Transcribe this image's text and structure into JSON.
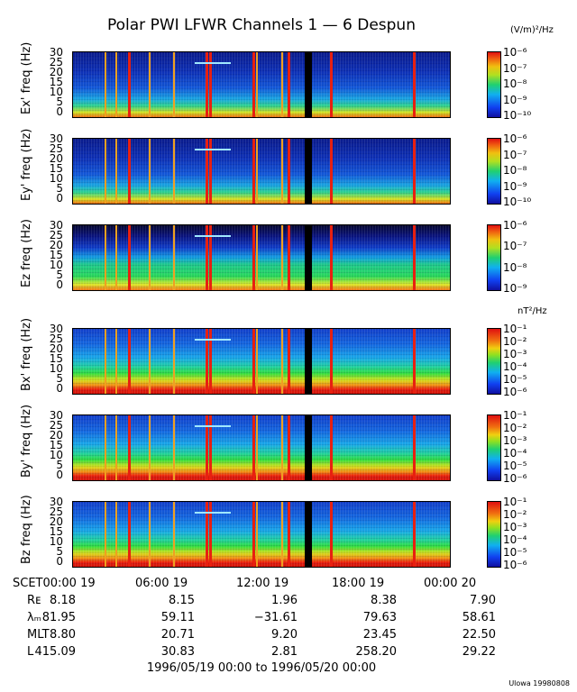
{
  "title": "Polar PWI LFWR Channels 1 — 6 Despun",
  "units": {
    "electric": "(V/m)²/Hz",
    "magnetic": "nT²/Hz"
  },
  "panels": [
    {
      "ylabel": "Ex' freq (Hz)",
      "yticks": [
        "30",
        "25",
        "20",
        "15",
        "10",
        "5",
        "0"
      ],
      "cbar": [
        "10⁻⁶",
        "10⁻⁷",
        "10⁻⁸",
        "10⁻⁹",
        "10⁻¹⁰"
      ]
    },
    {
      "ylabel": "Ey' freq (Hz)",
      "yticks": [
        "30",
        "25",
        "20",
        "15",
        "10",
        "5",
        "0"
      ],
      "cbar": [
        "10⁻⁶",
        "10⁻⁷",
        "10⁻⁸",
        "10⁻⁹",
        "10⁻¹⁰"
      ]
    },
    {
      "ylabel": "Ez freq (Hz)",
      "yticks": [
        "30",
        "25",
        "20",
        "15",
        "10",
        "5",
        "0"
      ],
      "cbar": [
        "10⁻⁶",
        "10⁻⁷",
        "10⁻⁸",
        "10⁻⁹"
      ]
    },
    {
      "ylabel": "Bx' freq (Hz)",
      "yticks": [
        "30",
        "25",
        "20",
        "15",
        "10",
        "5",
        "0"
      ],
      "cbar": [
        "10⁻¹",
        "10⁻²",
        "10⁻³",
        "10⁻⁴",
        "10⁻⁵",
        "10⁻⁶"
      ]
    },
    {
      "ylabel": "By' freq (Hz)",
      "yticks": [
        "30",
        "25",
        "20",
        "15",
        "10",
        "5",
        "0"
      ],
      "cbar": [
        "10⁻¹",
        "10⁻²",
        "10⁻³",
        "10⁻⁴",
        "10⁻⁵",
        "10⁻⁶"
      ]
    },
    {
      "ylabel": "Bz freq (Hz)",
      "yticks": [
        "30",
        "25",
        "20",
        "15",
        "10",
        "5",
        "0"
      ],
      "cbar": [
        "10⁻¹",
        "10⁻²",
        "10⁻³",
        "10⁻⁴",
        "10⁻⁵",
        "10⁻⁶"
      ]
    }
  ],
  "xaxis": {
    "ticks": [
      "SCET00:00 19",
      "06:00 19",
      "12:00 19",
      "18:00 19",
      "00:00 20"
    ]
  },
  "ephemeris": {
    "labels": [
      "Rᴇ",
      "λₘ",
      "MLT",
      "L"
    ],
    "rows": [
      [
        "8.18",
        "8.15",
        "1.96",
        "8.38",
        "7.90"
      ],
      [
        "81.95",
        "59.11",
        "−31.61",
        "79.63",
        "58.61"
      ],
      [
        "8.80",
        "20.71",
        "9.20",
        "23.45",
        "22.50"
      ],
      [
        "415.09",
        "30.83",
        "2.81",
        "258.20",
        "29.22"
      ]
    ]
  },
  "range": "1996/05/19 00:00 to 1996/05/20 00:00",
  "stamp": "Ulowa 19980808",
  "chart_data": {
    "type": "heatmap",
    "title": "Polar PWI LFWR Channels 1 — 6 Despun",
    "xlabel": "",
    "x_range": [
      "1996/05/19 00:00",
      "1996/05/20 00:00"
    ],
    "ylim": [
      0,
      30
    ],
    "series": [
      {
        "name": "Ex'",
        "units": "(V/m)²/Hz",
        "clim": [
          "10⁻¹⁰",
          "10⁻⁶"
        ]
      },
      {
        "name": "Ey'",
        "units": "(V/m)²/Hz",
        "clim": [
          "10⁻¹⁰",
          "10⁻⁶"
        ]
      },
      {
        "name": "Ez",
        "units": "(V/m)²/Hz",
        "clim": [
          "10⁻⁹",
          "10⁻⁶"
        ]
      },
      {
        "name": "Bx'",
        "units": "nT²/Hz",
        "clim": [
          "10⁻⁶",
          "10⁻¹"
        ]
      },
      {
        "name": "By'",
        "units": "nT²/Hz",
        "clim": [
          "10⁻⁶",
          "10⁻¹"
        ]
      },
      {
        "name": "Bz",
        "units": "nT²/Hz",
        "clim": [
          "10⁻⁶",
          "10⁻¹"
        ]
      }
    ],
    "data_gap": [
      "1996/05/19 14:00",
      "1996/05/19 14:40"
    ],
    "grid": false
  }
}
